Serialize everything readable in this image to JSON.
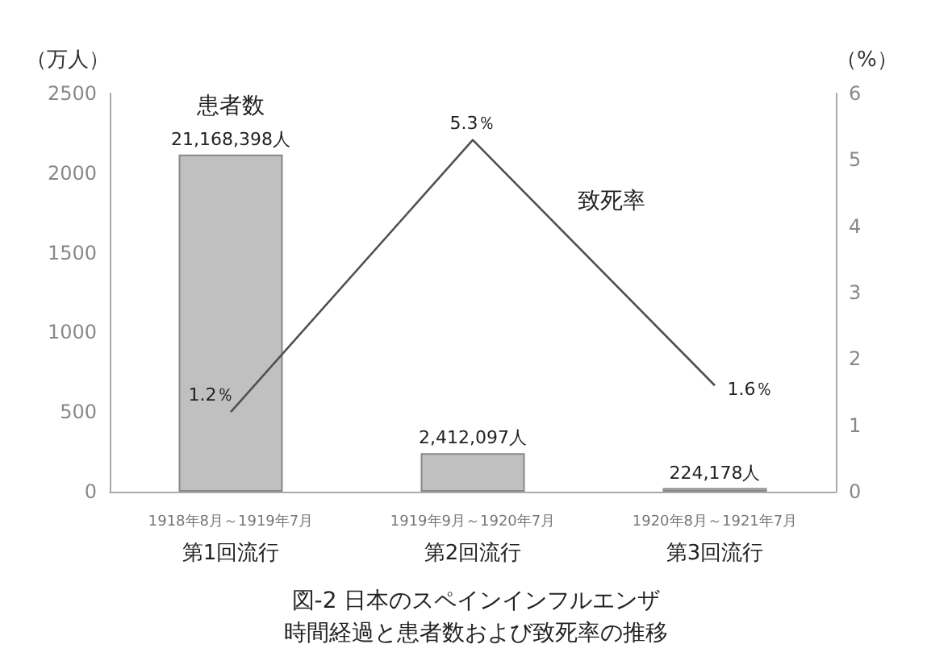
{
  "chart_data": {
    "type": "bar",
    "title": "図-2 日本のスペインインフルエンザ",
    "subtitle": "時間経過と患者数および致死率の推移",
    "categories": [
      "1918年8月～1919年7月",
      "1919年9月～1920年7月",
      "1920年8月～1921年7月"
    ],
    "annotations": [
      "第1回流行",
      "第2回流行",
      "第3回流行",
      {
        "text": "21,168,398人",
        "x": "1918年8月～1919年7月",
        "y": 2116.8398
      },
      {
        "text": "2,412,097人",
        "x": "1919年9月～1920年7月",
        "y": 241.2097
      },
      {
        "text": "224,178人",
        "x": "1920年8月～1921年7月",
        "y": 22.4178
      }
    ],
    "series": [
      {
        "name": "患者数",
        "color": "#c0c0c0",
        "values": [
          2116.8398,
          241.2097,
          22.4178
        ]
      },
      {
        "name": "致死率",
        "type": "line",
        "axis": "y2",
        "color": "#505050",
        "values": [
          1.2,
          5.3,
          1.6
        ],
        "value_labels": [
          "1.2％",
          "5.3％",
          "1.6％"
        ]
      }
    ],
    "ylabel": "（万人）",
    "y2label": "（%）",
    "ylim": [
      0,
      2500
    ],
    "yticks": [
      0,
      500,
      1000,
      1500,
      2000,
      2500
    ],
    "y2lim": [
      0,
      6
    ],
    "y2ticks": [
      0,
      1,
      2,
      3,
      4,
      5,
      6
    ],
    "marker": "none",
    "legend": false
  }
}
